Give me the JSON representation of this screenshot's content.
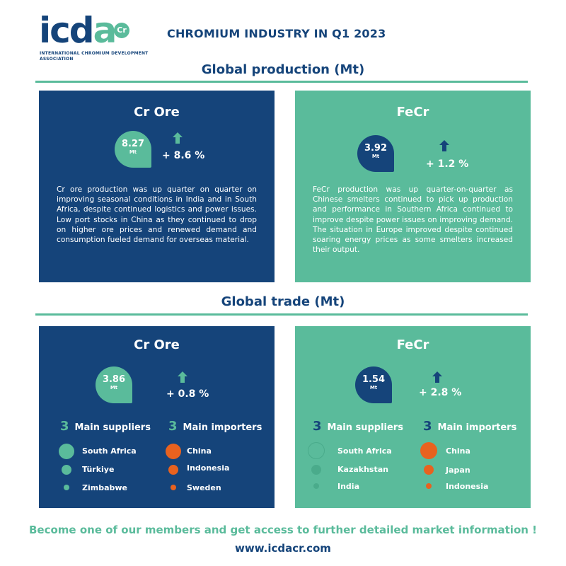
{
  "logo": {
    "text": "icda",
    "badge": "Cr",
    "subtitle": "INTERNATIONAL CHROMIUM DEVELOPMENT ASSOCIATION"
  },
  "title": "CHROMIUM INDUSTRY IN Q1 2023",
  "production": {
    "heading": "Global production (Mt)",
    "ore": {
      "title": "Cr Ore",
      "value": "8.27",
      "unit": "Mt",
      "change": "+ 8.6 %",
      "text": "Cr ore production was up quarter on quarter on improving seasonal conditions in India and in South Africa, despite continued logistics and power issues. Low port stocks in China as they continued to drop on higher ore prices and renewed demand and consumption fueled demand for overseas material."
    },
    "fecr": {
      "title": "FeCr",
      "value": "3.92",
      "unit": "Mt",
      "change": "+ 1.2 %",
      "text": "FeCr production was up quarter-on-quarter as Chinese smelters continued to pick up production and performance in Southern Africa continued to improve despite power issues on improving demand. The situation in Europe improved despite continued soaring energy prices as some smelters increased their output."
    }
  },
  "trade": {
    "heading": "Global trade (Mt)",
    "ore": {
      "title": "Cr Ore",
      "value": "3.86",
      "unit": "Mt",
      "change": "+ 0.8 %",
      "suppliers_count": "3",
      "suppliers_label": "Main suppliers",
      "importers_count": "3",
      "importers_label": "Main importers",
      "suppliers": [
        "South Africa",
        "Türkiye",
        "Zimbabwe"
      ],
      "importers": [
        "China",
        "Indonesia",
        "Sweden"
      ]
    },
    "fecr": {
      "title": "FeCr",
      "value": "1.54",
      "unit": "Mt",
      "change": "+ 2.8 %",
      "suppliers_count": "3",
      "suppliers_label": "Main suppliers",
      "importers_count": "3",
      "importers_label": "Main importers",
      "suppliers": [
        "South Africa",
        "Kazakhstan",
        "India"
      ],
      "importers": [
        "China",
        "Japan",
        "Indonesia"
      ]
    }
  },
  "footer": {
    "cta": "Become one of our members and get access to further detailed market information !",
    "url": "www.icdacr.com"
  },
  "colors": {
    "navy": "#15447a",
    "teal": "#5abb9b",
    "orange": "#e8621f"
  },
  "icons": {
    "arrow": "arrow-up-icon",
    "supplier_dot": "teal-circle-icon",
    "importer_dot": "orange-circle-icon"
  }
}
